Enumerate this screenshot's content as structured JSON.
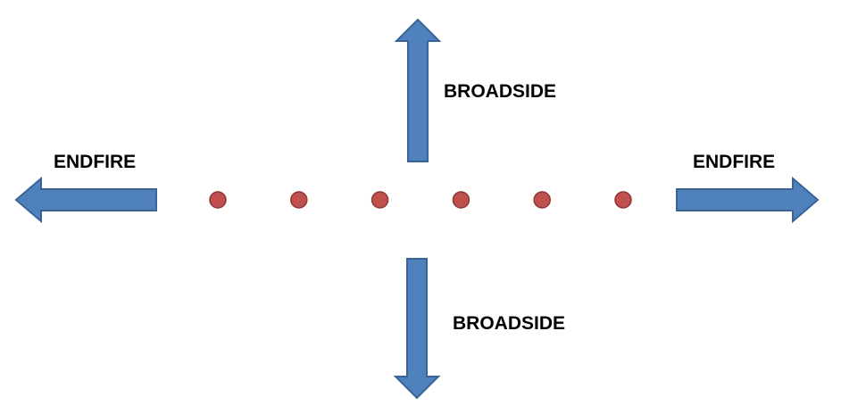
{
  "labels": {
    "endfire_left": "ENDFIRE",
    "endfire_right": "ENDFIRE",
    "broadside_top": "BROADSIDE",
    "broadside_bottom": "BROADSIDE"
  },
  "array_elements": {
    "count": 6
  },
  "colors": {
    "arrow_fill": "#4F81BD",
    "arrow_stroke": "#3A6497",
    "element_fill": "#C0504D",
    "element_stroke": "#8C3836",
    "text": "#000000"
  }
}
